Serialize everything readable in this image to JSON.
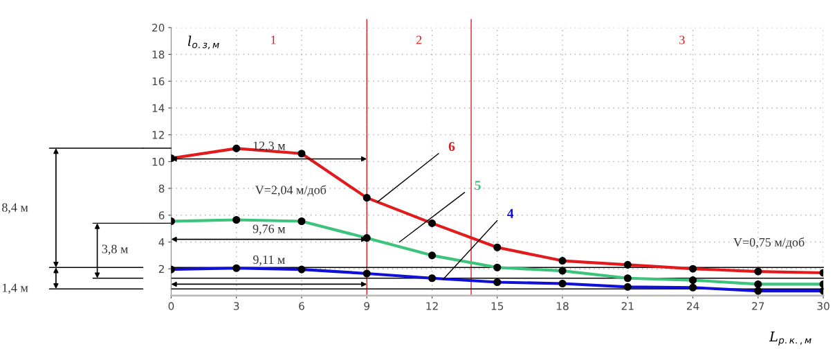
{
  "chart_data": {
    "type": "line",
    "x": [
      0,
      3,
      6,
      9,
      12,
      15,
      18,
      21,
      24,
      27,
      30
    ],
    "series": [
      {
        "name": "6",
        "color": "#e31a1c",
        "values": [
          10.25,
          10.98,
          10.6,
          7.3,
          5.4,
          3.6,
          2.6,
          2.3,
          2.0,
          1.8,
          1.7
        ]
      },
      {
        "name": "5",
        "color": "#3cc47c",
        "values": [
          5.55,
          5.65,
          5.55,
          4.3,
          3.0,
          2.1,
          1.85,
          1.3,
          1.15,
          0.85,
          0.85
        ]
      },
      {
        "name": "4",
        "color": "#1010d8",
        "values": [
          1.95,
          2.05,
          1.95,
          1.65,
          1.3,
          1.0,
          0.9,
          0.65,
          0.6,
          0.35,
          0.35
        ]
      }
    ],
    "xlabel": "L$_{р.к.,м}$",
    "ylabel": "l$_{о.з,м}$",
    "xlim": [
      0,
      30
    ],
    "xticks": [
      0,
      3,
      6,
      9,
      12,
      15,
      18,
      21,
      24,
      27,
      30
    ],
    "ylim": [
      0,
      20
    ],
    "yticks": [
      2,
      4,
      6,
      8,
      10,
      12,
      14,
      16,
      18,
      20
    ],
    "ref_lines": [
      {
        "axis": "x",
        "value": 9,
        "color": "#e31a1c"
      },
      {
        "axis": "x",
        "value": 13.8,
        "color": "#e31a1c"
      },
      {
        "axis": "y",
        "value": 2.1,
        "color": "#000000"
      },
      {
        "axis": "y",
        "value": 1.3,
        "color": "#000000"
      },
      {
        "axis": "y",
        "value": 0.5,
        "color": "#000000"
      }
    ],
    "annotations": [
      "1",
      "2",
      "3",
      "12,3 м",
      "9,76 м",
      "9,11 м",
      "V=2,04 м/доб",
      "V=0,75 м/доб",
      "8,4 м",
      "3,8 м",
      "1,4 м"
    ],
    "grid": true,
    "marker": "circle",
    "line_style": "solid"
  }
}
